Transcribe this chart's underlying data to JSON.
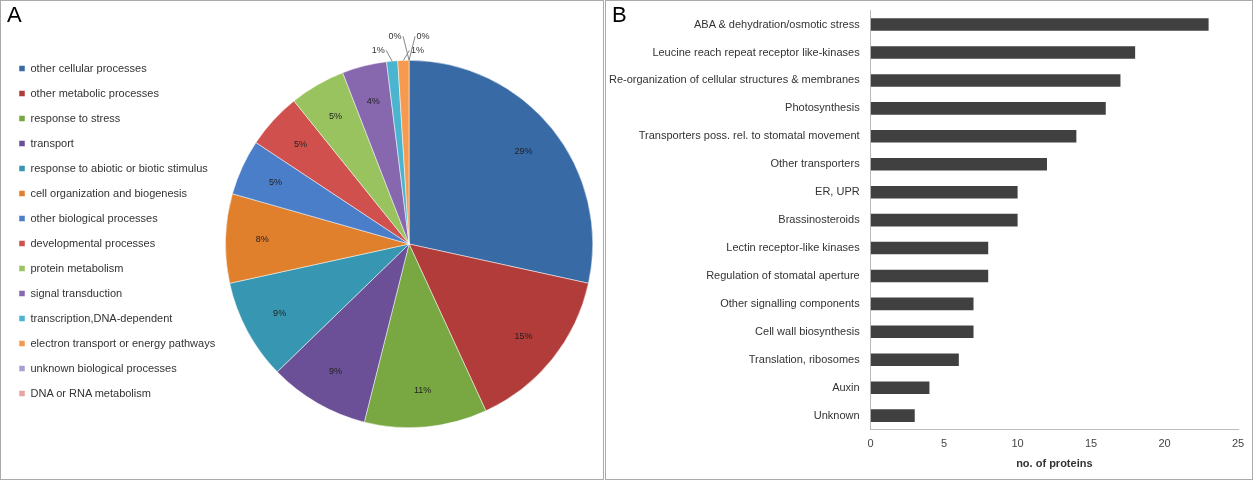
{
  "chart_data": [
    {
      "type": "pie",
      "annotations": [
        "A"
      ],
      "legend": "left",
      "categories": [
        "other cellular processes",
        "other metabolic processes",
        "response to stress",
        "transport",
        "response to abiotic or biotic stimulus",
        "cell organization and biogenesis",
        "other biological processes",
        "developmental processes",
        "protein metabolism",
        "signal transduction",
        "transcription,DNA-dependent",
        "electron transport or energy pathways",
        "unknown biological processes",
        "DNA or RNA metabolism"
      ],
      "values": [
        29,
        15,
        11,
        9,
        9,
        8,
        5,
        5,
        5,
        4,
        1,
        1,
        0,
        0
      ],
      "value_labels": [
        "29%",
        "15%",
        "11%",
        "9%",
        "9%",
        "8%",
        "5%",
        "5%",
        "5%",
        "4%",
        "1%",
        "1%",
        "0%",
        "0%"
      ],
      "colors": [
        "#386aa6",
        "#b23c39",
        "#79a843",
        "#6b4f97",
        "#3797b2",
        "#e07f2c",
        "#4a7ec9",
        "#d0504d",
        "#98c35e",
        "#8767ae",
        "#4bb4cf",
        "#f59a4e",
        "#a6a1d4",
        "#e8a4a0"
      ]
    },
    {
      "type": "bar",
      "orientation": "horizontal",
      "annotations": [
        "B"
      ],
      "xlabel": "no. of proteins",
      "categories": [
        "ABA & dehydration/osmotic stress",
        "Leucine reach repeat receptor like-kinases",
        "Re-organization of cellular structures & membranes",
        "Photosynthesis",
        "Transporters poss. rel. to stomatal movement",
        "Other transporters",
        "ER, UPR",
        "Brassinosteroids",
        "Lectin receptor-like kinases",
        "Regulation of stomatal aperture",
        "Other signalling components",
        "Cell wall biosynthesis",
        "Translation, ribosomes",
        "Auxin",
        "Unknown"
      ],
      "values": [
        23,
        18,
        17,
        16,
        14,
        12,
        10,
        10,
        8,
        8,
        7,
        7,
        6,
        4,
        3
      ],
      "color": "#404040",
      "xlim": [
        0,
        25
      ],
      "xticks": [
        0,
        5,
        10,
        15,
        20,
        25
      ]
    }
  ]
}
